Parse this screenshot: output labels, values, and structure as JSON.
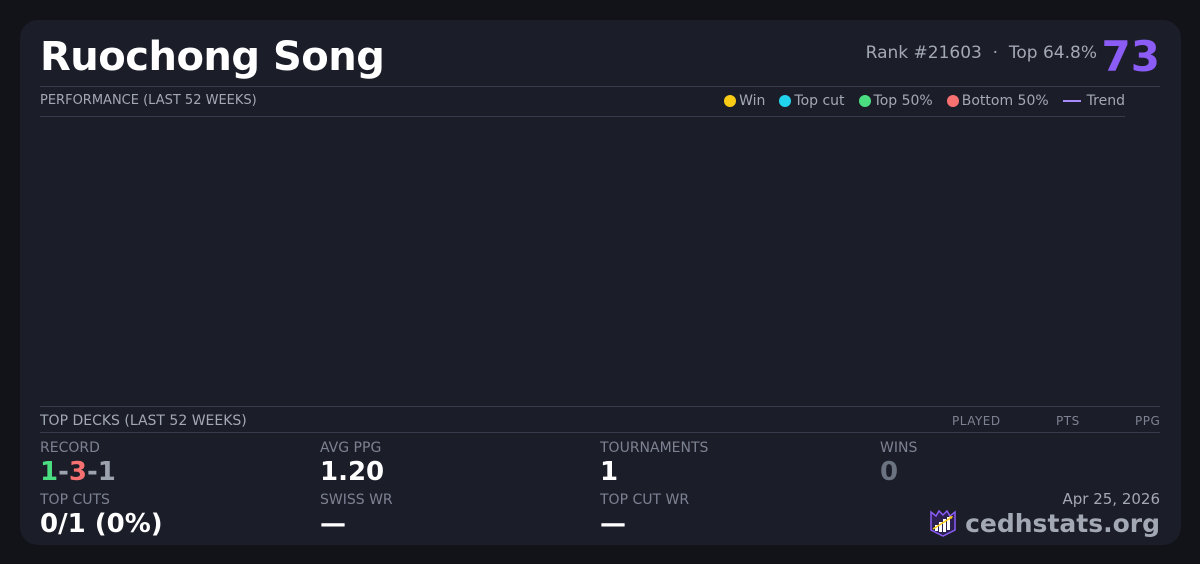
{
  "player": {
    "name": "Ruochong Song",
    "rank": "Rank #21603",
    "separator": "·",
    "percentile": "Top 64.8%",
    "score": "73"
  },
  "performance": {
    "title": "PERFORMANCE (LAST 52 WEEKS)",
    "legend": [
      {
        "label": "Win",
        "color": "#facc15"
      },
      {
        "label": "Top cut",
        "color": "#22d3ee"
      },
      {
        "label": "Top 50%",
        "color": "#4ade80"
      },
      {
        "label": "Bottom 50%",
        "color": "#f87171"
      },
      {
        "label": "Trend",
        "color": "#a78bfa"
      }
    ]
  },
  "decks": {
    "title": "TOP DECKS (LAST 52 WEEKS)",
    "columns": [
      "PLAYED",
      "PTS",
      "PPG"
    ]
  },
  "stats": {
    "record_label": "RECORD",
    "record_wins": "1",
    "record_losses": "3",
    "record_draws": "1",
    "record_sep": "-",
    "avg_ppg_label": "AVG PPG",
    "avg_ppg": "1.20",
    "tournaments_label": "TOURNAMENTS",
    "tournaments": "1",
    "wins_label": "WINS",
    "wins": "0",
    "top_cuts_label": "TOP CUTS",
    "top_cuts": "0/1 (0%)",
    "swiss_wr_label": "SWISS WR",
    "swiss_wr": "—",
    "top_cut_wr_label": "TOP CUT WR",
    "top_cut_wr": "—"
  },
  "footer": {
    "date": "Apr 25, 2026",
    "brand": "cedhstats.org"
  },
  "colors": {
    "accent": "#8b5cf6",
    "win": "#4ade80",
    "loss": "#f87171",
    "draw": "#9ca3af"
  }
}
